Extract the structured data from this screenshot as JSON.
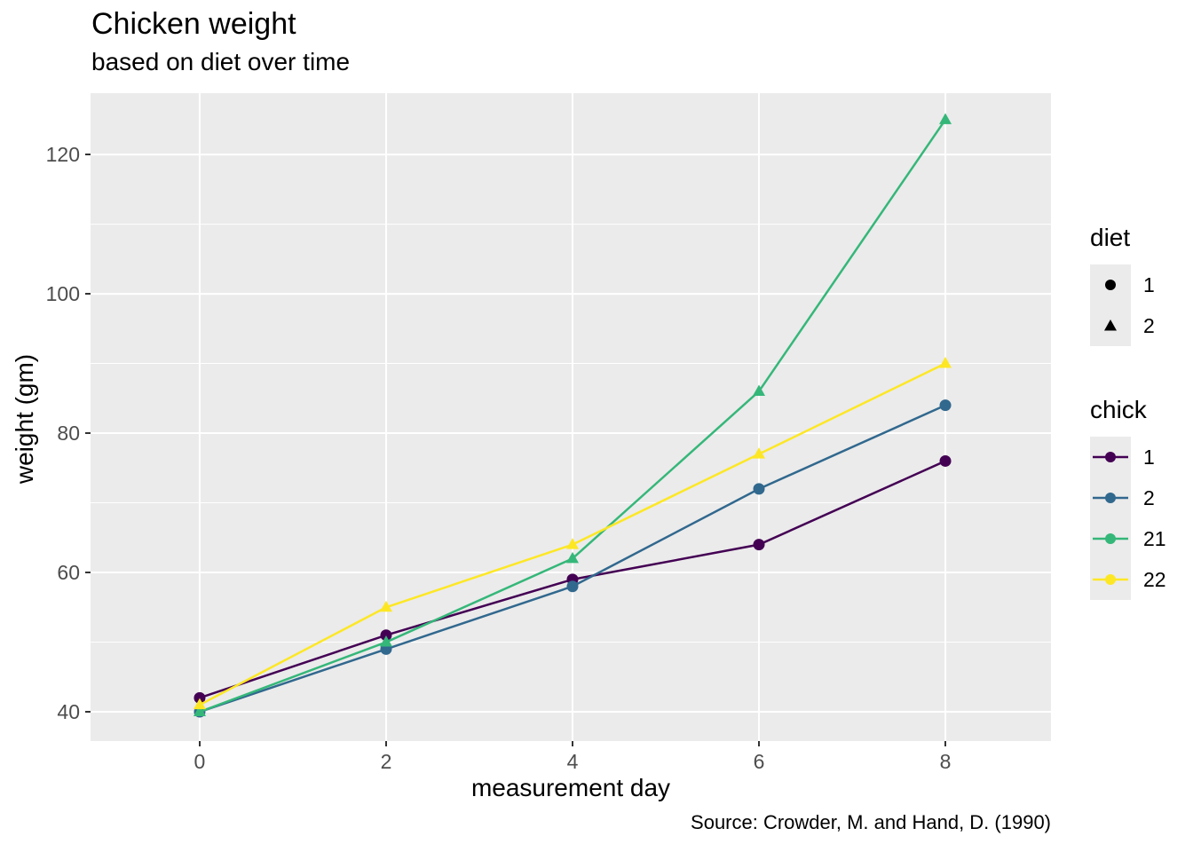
{
  "chart_data": {
    "type": "line",
    "title": "Chicken weight",
    "subtitle": "based on diet over time",
    "caption": "Source: Crowder, M. and Hand, D. (1990)",
    "xlabel": "measurement day",
    "ylabel": "weight (gm)",
    "x": [
      0,
      2,
      4,
      6,
      8
    ],
    "series": [
      {
        "name": "1",
        "diet": "1",
        "shape": "circle",
        "color": "#440154",
        "values": [
          42,
          51,
          59,
          64,
          76
        ]
      },
      {
        "name": "2",
        "diet": "1",
        "shape": "circle",
        "color": "#31688E",
        "values": [
          40,
          49,
          58,
          72,
          84
        ]
      },
      {
        "name": "21",
        "diet": "2",
        "shape": "triangle",
        "color": "#35B779",
        "values": [
          40,
          50,
          62,
          86,
          125
        ]
      },
      {
        "name": "22",
        "diet": "2",
        "shape": "triangle",
        "color": "#FDE725",
        "values": [
          41,
          55,
          64,
          77,
          90
        ]
      }
    ],
    "xlim": [
      -1.171,
      9.133
    ],
    "ylim": [
      35.8,
      128.8
    ],
    "x_ticks": [
      0,
      2,
      4,
      6,
      8
    ],
    "y_ticks": [
      40,
      60,
      80,
      100,
      120
    ],
    "y_minor_ticks": [
      50,
      70,
      90,
      110
    ],
    "grid": true,
    "legend_position": "right",
    "panel_bg": "#EBEBEB",
    "grid_color": "#FFFFFF",
    "tick_label_color": "#4D4D4D",
    "tick_mark_color": "#333333"
  },
  "legends": [
    {
      "id": "diet",
      "title": "diet",
      "kind": "shape",
      "items": [
        {
          "label": "1",
          "shape": "circle",
          "color": "#000000"
        },
        {
          "label": "2",
          "shape": "triangle",
          "color": "#000000"
        }
      ]
    },
    {
      "id": "chick",
      "title": "chick",
      "kind": "line-point",
      "items": [
        {
          "label": "1",
          "shape": "circle",
          "color": "#440154"
        },
        {
          "label": "2",
          "shape": "circle",
          "color": "#31688E"
        },
        {
          "label": "21",
          "shape": "circle",
          "color": "#35B779"
        },
        {
          "label": "22",
          "shape": "circle",
          "color": "#FDE725"
        }
      ]
    }
  ]
}
